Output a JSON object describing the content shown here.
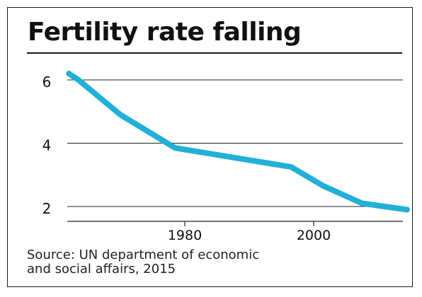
{
  "source": {
    "line1": "Source: UN department of economic",
    "line2": "and social affairs, 2015"
  },
  "colors": {
    "series": "#22b0d8",
    "grid": "#222222",
    "text": "#111111"
  },
  "chart_data": {
    "type": "line",
    "title": "Fertility rate falling",
    "xlabel": "",
    "ylabel": "",
    "xlim": [
      1960,
      2015
    ],
    "ylim": [
      1.5,
      6.5
    ],
    "xticks": [
      1980,
      2000
    ],
    "xtick_labels": [
      "1980",
      "2000"
    ],
    "yticks": [
      2,
      4,
      6
    ],
    "ytick_labels": [
      "2",
      "4",
      "6"
    ],
    "grid": "horizontal",
    "series": [
      {
        "name": "",
        "x": [
          1962,
          1963.5,
          1970,
          1978.5,
          1986,
          1996.5,
          2001.5,
          2007.5,
          2014.5
        ],
        "y": [
          6.2,
          6.0,
          4.9,
          3.85,
          3.6,
          3.25,
          2.65,
          2.1,
          1.9
        ]
      }
    ]
  }
}
